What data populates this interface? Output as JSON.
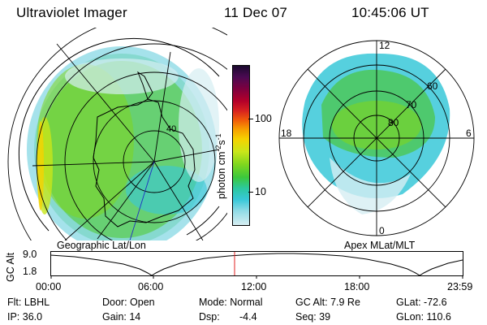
{
  "header": {
    "instrument": "Ultraviolet Imager",
    "date": "11 Dec 07",
    "time": "10:45:06 UT"
  },
  "left_panel": {
    "label": "Geographic Lat/Lon",
    "lat_label": "40"
  },
  "right_panel": {
    "label": "Apex MLat/MLT",
    "mlt_labels": {
      "top": "12",
      "right": "6",
      "bottom": "0",
      "left": "18"
    },
    "mlat_labels": [
      "80",
      "70",
      "60"
    ]
  },
  "colorbar": {
    "unit_label": "photon cm",
    "unit_sup1": "-2",
    "unit_mid": "s",
    "unit_sup2": "-1",
    "ticks": [
      "100",
      "10"
    ],
    "colors": [
      "#1a0a2e",
      "#4b0a52",
      "#7a0040",
      "#b3002a",
      "#d62020",
      "#f05a0a",
      "#f7a000",
      "#f5d200",
      "#c8e61a",
      "#7fd61e",
      "#3cc83c",
      "#2cc8a0",
      "#38c8d8",
      "#8fdbe6",
      "#d6eef2"
    ]
  },
  "timeline": {
    "axis_label": "GC Alt",
    "y_ticks": [
      "9.0",
      "1.8"
    ],
    "x_ticks": [
      "00:00",
      "06:00",
      "12:00",
      "18:00",
      "23:59"
    ],
    "marker_fraction": 0.447,
    "marker_color": "#e02020"
  },
  "info": {
    "flt": "Flt: LBHL",
    "ip": "IP: 36.0",
    "door": "Door: Open",
    "gain": "Gain: 14",
    "mode": "Mode: Normal",
    "dsp_label": "Dsp:",
    "dsp_value": "-4.4",
    "gc_alt": "GC Alt: 7.9 Re",
    "seq": "Seq: 39",
    "glat": "GLat: -72.6",
    "glon": "GLon: 110.6"
  }
}
